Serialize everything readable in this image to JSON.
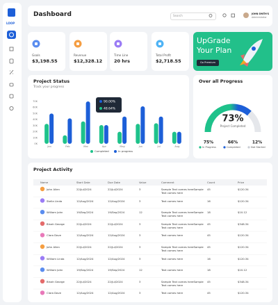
{
  "sidebar": {
    "logo": "LOOP"
  },
  "header": {
    "title": "Dashboard",
    "search_placeholder": "Search",
    "user_name": "JOHN SMITH'S",
    "user_role": "Administrator"
  },
  "stats": [
    {
      "label": "Goals",
      "value": "$3,198.55",
      "color": "#5b8def"
    },
    {
      "label": "Revenue",
      "value": "$12,328.12",
      "color": "#f59e42"
    },
    {
      "label": "Time Line",
      "value": "20 hrs",
      "color": "#9b7cf5"
    },
    {
      "label": "Total Profit",
      "value": "$2,718.55",
      "color": "#4fb3f5"
    }
  ],
  "upgrade": {
    "title": "UpGrade Your Plan",
    "button": "Go Premium"
  },
  "project_status": {
    "type": "bar",
    "title": "Project Status",
    "subtitle": "Track your progress",
    "categories": [
      "Jan",
      "Feb",
      "Mar",
      "Apr",
      "May",
      "Jun",
      "Jul",
      "Aug"
    ],
    "series": [
      {
        "name": "Completed",
        "color": "#1ec28b",
        "values": [
          33000,
          14000,
          37000,
          31000,
          20000,
          33000,
          34000,
          20000
        ]
      },
      {
        "name": "In progress",
        "color": "#1d5fd8",
        "values": [
          50000,
          42000,
          70000,
          31000,
          45000,
          62000,
          45000,
          20000
        ]
      }
    ],
    "ylim": [
      0,
      70000
    ],
    "yticks": [
      {
        "value": 0,
        "label": "0K"
      },
      {
        "value": 10000,
        "label": "10K"
      },
      {
        "value": 20000,
        "label": "20K"
      },
      {
        "value": 30000,
        "label": "30K"
      },
      {
        "value": 40000,
        "label": "40K"
      },
      {
        "value": 50000,
        "label": "50K"
      },
      {
        "value": 60000,
        "label": "60K"
      },
      {
        "value": 70000,
        "label": "70K"
      }
    ],
    "grid": false,
    "tooltip": [
      {
        "label": "90.00%",
        "color": "#1d5fd8"
      },
      {
        "label": "48.64%",
        "color": "#1ec28b"
      }
    ]
  },
  "overall_progress": {
    "title": "Over all Progress",
    "value": 73,
    "value_label": "73%",
    "caption": "Project Completed",
    "colors": [
      "#1ec28b",
      "#1d5fd8"
    ],
    "breakdown": [
      {
        "value": "75%",
        "label": "In Progress",
        "color": "#1ec28b"
      },
      {
        "value": "66%",
        "label": "Completed",
        "color": "#1d5fd8"
      },
      {
        "value": "12%",
        "label": "Not Started",
        "color": "#c8ccd3"
      }
    ]
  },
  "activity": {
    "title": "Project Activity",
    "columns": [
      "Name",
      "Start Date",
      "Due Date",
      "Value",
      "Comment",
      "Count",
      "Price"
    ],
    "rows": [
      {
        "avatar": "#f59e42",
        "cells": [
          "John Allen",
          "22/Jul/2024",
          "22/Jul/2024",
          "3",
          "Sample Text comes hereSample Text comes here",
          "45",
          "$120.34"
        ]
      },
      {
        "avatar": "#9b7cf5",
        "cells": [
          "Stella Linda",
          "12/Aug/2024",
          "12/Aug/2024",
          "3",
          "Text comes here",
          "16",
          "$120.34"
        ]
      },
      {
        "avatar": "#5b8def",
        "cells": [
          "William John",
          "19/Sep/2024",
          "19/Sep/2024",
          "12",
          "Sample Text comes hereSample Text comes here",
          "18",
          "$10.12"
        ]
      },
      {
        "avatar": "#e46b6b",
        "cells": [
          "Binah George",
          "22/Jul/2024",
          "22/Jul/2024",
          "3",
          "Sample Text comes hereSample Text comes here",
          "45",
          "$348.34"
        ]
      },
      {
        "avatar": "#e879b9",
        "cells": [
          "Clara Dove",
          "12/Aug/2024",
          "12/Aug/2024",
          "3",
          "Text comes here",
          "45",
          "$120.34"
        ]
      },
      {
        "avatar": "#f59e42",
        "cells": [
          "John Allen",
          "22/Jul/2024",
          "22/Jul/2024",
          "3",
          "Sample Text comes hereSample Text comes here",
          "45",
          "$120.34"
        ]
      },
      {
        "avatar": "#9b7cf5",
        "cells": [
          "William Linda",
          "12/Aug/2024",
          "12/Aug/2024",
          "3",
          "Text comes here",
          "16",
          "$120.34"
        ]
      },
      {
        "avatar": "#5b8def",
        "cells": [
          "William John",
          "19/Sep/2024",
          "19/Sep/2024",
          "12",
          "Text comes here",
          "18",
          "$10.12"
        ]
      },
      {
        "avatar": "#e46b6b",
        "cells": [
          "Binah George",
          "22/Jul/2024",
          "22/Jul/2024",
          "3",
          "Sample Text comes hereSample Text comes here",
          "45",
          "$348.34"
        ]
      },
      {
        "avatar": "#e879b9",
        "cells": [
          "Clara Dove",
          "12/Aug/2024",
          "12/Aug/2024",
          "3",
          "Text comes here",
          "45",
          "$120.34"
        ]
      }
    ]
  }
}
